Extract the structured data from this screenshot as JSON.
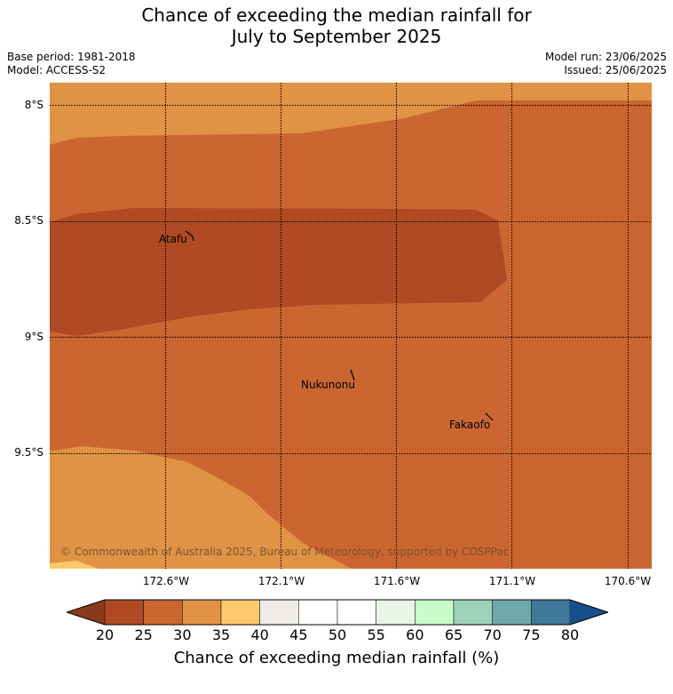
{
  "title_line1": "Chance of exceeding the median rainfall for",
  "title_line2": "July to September 2025",
  "base_period": "Base period: 1981-2018",
  "model": "Model: ACCESS-S2",
  "model_run": "Model run: 23/06/2025",
  "issued": "Issued: 25/06/2025",
  "lat_labels": [
    "8°S",
    "8.5°S",
    "9°S",
    "9.5°S"
  ],
  "lon_labels": [
    "172.6°W",
    "172.1°W",
    "171.6°W",
    "171.1°W",
    "170.6°W"
  ],
  "places": [
    "Atafu",
    "Nukunonu",
    "Fakaofo"
  ],
  "copyright": "© Commonwealth of Australia 2025, Bureau of Meteorology, supported by COSPPac",
  "colorbar": {
    "ticks": [
      "20",
      "25",
      "30",
      "35",
      "40",
      "45",
      "50",
      "55",
      "60",
      "65",
      "70",
      "75",
      "80"
    ],
    "label": "Chance of exceeding median rainfall (%)",
    "colors": [
      "#b04a24",
      "#cc6631",
      "#e09245",
      "#fec96a",
      "#eeebe8",
      "#ffffff",
      "#ffffff",
      "#e9f5e8",
      "#c8fdc9",
      "#9dd1b8",
      "#6ea8a8",
      "#3f7899"
    ],
    "under_color": "#8a3a1e",
    "over_color": "#164f8b"
  },
  "map_colors": {
    "band_20_25": "#b04a24",
    "band_25_30": "#cc6631",
    "band_30_35": "#e09245",
    "band_35_40": "#fec96a"
  }
}
